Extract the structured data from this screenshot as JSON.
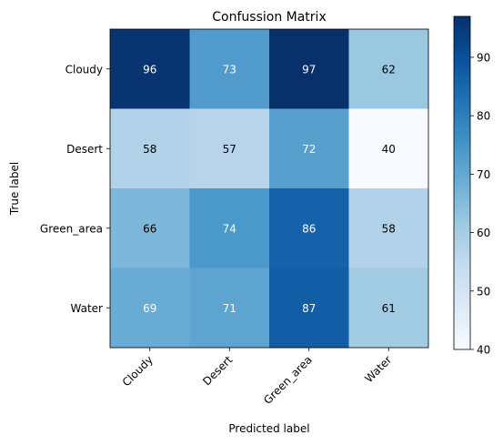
{
  "chart_data": {
    "type": "heatmap",
    "title": "Confussion Matrix",
    "xlabel": "Predicted label",
    "ylabel": "True label",
    "x_categories": [
      "Cloudy",
      "Desert",
      "Green_area",
      "Water"
    ],
    "y_categories": [
      "Cloudy",
      "Desert",
      "Green_area",
      "Water"
    ],
    "values": [
      [
        96,
        73,
        97,
        62
      ],
      [
        58,
        57,
        72,
        40
      ],
      [
        66,
        74,
        86,
        58
      ],
      [
        69,
        71,
        87,
        61
      ]
    ],
    "colormap": "Blues",
    "color_range": [
      40,
      97
    ],
    "colorbar_ticks": [
      40,
      50,
      60,
      70,
      80,
      90
    ],
    "text_threshold": 68.5,
    "text_color_dark_cell": "#ffffff",
    "text_color_light_cell": "#000000"
  }
}
